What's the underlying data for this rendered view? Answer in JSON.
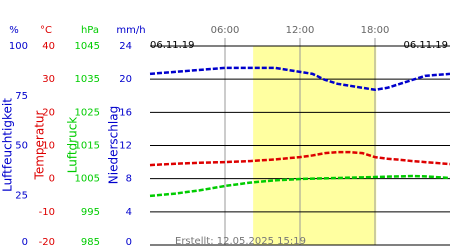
{
  "chart_data": {
    "type": "line",
    "date_left": "06.11.19",
    "date_right": "06.11.19",
    "footer": "Erstellt: 12.05.2025 15:19",
    "x": [
      0,
      2,
      4,
      6,
      8,
      10,
      12,
      13,
      14,
      15,
      16,
      17,
      18,
      19,
      20,
      21,
      22,
      24
    ],
    "xlim": [
      0,
      24
    ],
    "xticks": [
      {
        "value": 6,
        "label": "06:00"
      },
      {
        "value": 12,
        "label": "12:00"
      },
      {
        "value": 18,
        "label": "18:00"
      }
    ],
    "highlight": [
      8.25,
      18.1
    ],
    "axes": [
      {
        "unit": "%",
        "label": "Luftfeuchtigkeit",
        "color": "#0000cc",
        "lim": [
          0,
          100
        ],
        "ticks": [
          100,
          75,
          50,
          25,
          0
        ]
      },
      {
        "unit": "°C",
        "label": "Temperatur",
        "color": "#dd0000",
        "lim": [
          -20,
          40
        ],
        "ticks": [
          40,
          30,
          20,
          10,
          0,
          -10,
          -20
        ]
      },
      {
        "unit": "hPa",
        "label": "Luftdruck",
        "color": "#00cc00",
        "lim": [
          985,
          1045
        ],
        "ticks": [
          1045,
          1035,
          1025,
          1015,
          1005,
          995,
          985
        ]
      },
      {
        "unit": "mm/h",
        "label": "Niederschlag",
        "color": "#0000cc",
        "lim": [
          0,
          24
        ],
        "ticks": [
          24,
          20,
          16,
          12,
          8,
          4,
          0
        ]
      }
    ],
    "grid_axis": 3,
    "series": [
      {
        "name": "Luftfeuchtigkeit",
        "color": "#0000cc",
        "axis": 0,
        "values": [
          86,
          87,
          88,
          89,
          89,
          89,
          87,
          86,
          83,
          81,
          80,
          79,
          78,
          79,
          81,
          83,
          85,
          86
        ]
      },
      {
        "name": "Temperatur",
        "color": "#dd0000",
        "axis": 1,
        "values": [
          4.1,
          4.5,
          4.8,
          5,
          5.3,
          5.8,
          6.5,
          7,
          7.7,
          8,
          8,
          7.7,
          6.5,
          6,
          5.7,
          5.3,
          5,
          4.4
        ]
      },
      {
        "name": "Luftdruck",
        "color": "#00cc00",
        "axis": 2,
        "values": [
          999.8,
          1000.5,
          1001.5,
          1002.8,
          1003.8,
          1004.5,
          1004.9,
          1005,
          1005.1,
          1005.2,
          1005.3,
          1005.4,
          1005.5,
          1005.6,
          1005.7,
          1005.8,
          1005.7,
          1005.2
        ]
      }
    ]
  }
}
